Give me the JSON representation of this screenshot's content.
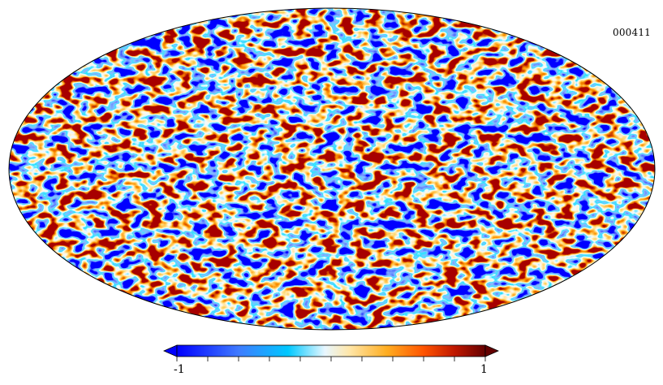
{
  "map": {
    "label": "000411",
    "projection": "mollweide"
  },
  "colorbar": {
    "min_label": "-1",
    "max_label": "1",
    "min_value": -1,
    "max_value": 1,
    "tick_count": 11,
    "stops": [
      {
        "pos": 0.0,
        "color": "#0000ff"
      },
      {
        "pos": 0.2,
        "color": "#3f7bff"
      },
      {
        "pos": 0.36,
        "color": "#00c8ff"
      },
      {
        "pos": 0.48,
        "color": "#e8f7ff"
      },
      {
        "pos": 0.56,
        "color": "#ffe6a8"
      },
      {
        "pos": 0.68,
        "color": "#ffae22"
      },
      {
        "pos": 0.8,
        "color": "#ff5400"
      },
      {
        "pos": 0.9,
        "color": "#c01800"
      },
      {
        "pos": 1.0,
        "color": "#640000"
      }
    ]
  }
}
